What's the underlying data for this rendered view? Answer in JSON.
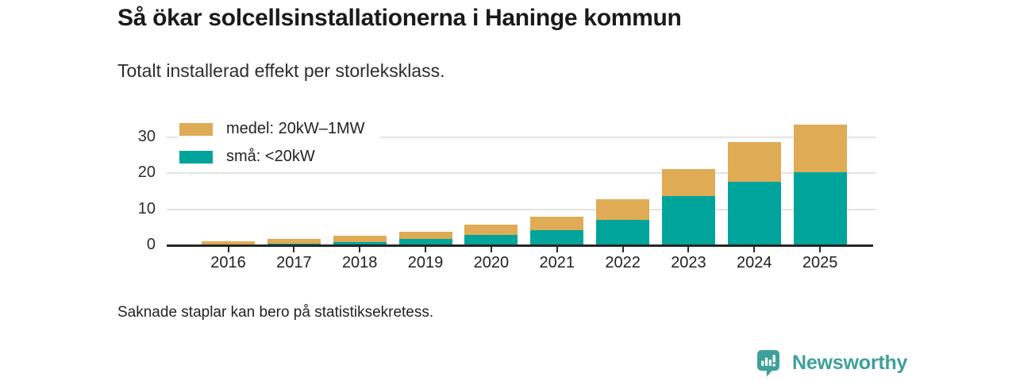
{
  "footnote": "Saknade staplar kan bero på statistiksekretess.",
  "branding": {
    "name": "Newsworthy",
    "color": "#3EA09B",
    "icon": "bar-chart-speech-bubble-icon"
  },
  "chart_data": {
    "type": "bar",
    "stacked": true,
    "title": "Så ökar solcellsinstallationerna i Haninge kommun",
    "subtitle": "Totalt installerad effekt per storleksklass.",
    "categories": [
      "2016",
      "2017",
      "2018",
      "2019",
      "2020",
      "2021",
      "2022",
      "2023",
      "2024",
      "2025"
    ],
    "series": [
      {
        "name": "medel: 20kW–1MW",
        "color": "#DFAB55",
        "values": [
          1.1,
          1.3,
          1.7,
          2.0,
          2.8,
          3.9,
          5.8,
          7.4,
          11.0,
          13.2
        ]
      },
      {
        "name": "små: <20kW",
        "color": "#00A49A",
        "values": [
          0.1,
          0.5,
          0.9,
          1.8,
          2.9,
          4.1,
          7.0,
          13.7,
          17.6,
          20.4
        ]
      }
    ],
    "stack_order_bottom_to_top": [
      "små: <20kW",
      "medel: 20kW–1MW"
    ],
    "totals": [
      1.2,
      1.8,
      2.6,
      3.8,
      5.7,
      8.0,
      12.8,
      21.1,
      28.6,
      33.6
    ],
    "xlabel": "",
    "ylabel": "",
    "yticks": [
      0,
      10,
      20,
      30
    ],
    "ylim": [
      0,
      36
    ],
    "grid": "horizontal",
    "legend_position": "top-left-inside"
  }
}
